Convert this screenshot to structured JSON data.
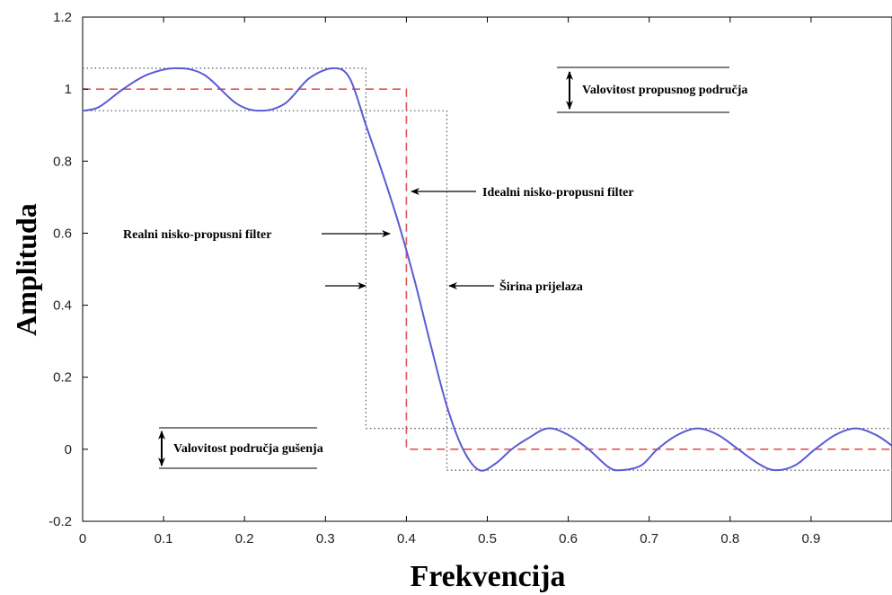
{
  "chart_data": {
    "type": "line",
    "xlabel": "Frekvencija",
    "ylabel": "Amplituda",
    "xlim": [
      0,
      1
    ],
    "ylim": [
      -0.2,
      1.2
    ],
    "xticks": [
      "0",
      "0.1",
      "0.2",
      "0.3",
      "0.4",
      "0.5",
      "0.6",
      "0.7",
      "0.8",
      "0.9"
    ],
    "yticks": [
      "-0.2",
      "0",
      "0.2",
      "0.4",
      "0.6",
      "0.8",
      "1",
      "1.2"
    ],
    "series": [
      {
        "color": "#5a5ad6",
        "style": "solid",
        "x": [
          0,
          0.02,
          0.05,
          0.08,
          0.115,
          0.15,
          0.19,
          0.22,
          0.25,
          0.28,
          0.31,
          0.33,
          0.35,
          0.37,
          0.39,
          0.41,
          0.43,
          0.45,
          0.47,
          0.49,
          0.51,
          0.53,
          0.55,
          0.575,
          0.6,
          0.625,
          0.65,
          0.665,
          0.69,
          0.71,
          0.735,
          0.76,
          0.785,
          0.81,
          0.835,
          0.855,
          0.88,
          0.905,
          0.93,
          0.955,
          0.98,
          1.0
        ],
        "y": [
          0.94,
          0.95,
          1.0,
          1.04,
          1.058,
          1.04,
          0.96,
          0.94,
          0.96,
          1.03,
          1.058,
          1.03,
          0.9,
          0.77,
          0.63,
          0.47,
          0.29,
          0.12,
          0.0,
          -0.058,
          -0.04,
          0.0,
          0.03,
          0.058,
          0.04,
          0.0,
          -0.05,
          -0.058,
          -0.045,
          0.0,
          0.04,
          0.058,
          0.04,
          0.0,
          -0.04,
          -0.058,
          -0.045,
          0.0,
          0.04,
          0.058,
          0.04,
          0.01
        ]
      },
      {
        "color": "#e05555",
        "style": "dashed",
        "x": [
          0,
          0.4,
          0.4,
          1.0
        ],
        "y": [
          1,
          1,
          0,
          0
        ]
      }
    ],
    "tolerance_lines": [
      {
        "x": [
          0,
          0.35
        ],
        "y": [
          1.058,
          1.058
        ]
      },
      {
        "x": [
          0,
          0.45
        ],
        "y": [
          0.94,
          0.94
        ]
      },
      {
        "x": [
          0.35,
          0.35
        ],
        "y": [
          1.058,
          0.058
        ]
      },
      {
        "x": [
          0.45,
          0.45
        ],
        "y": [
          0.94,
          -0.058
        ]
      },
      {
        "x": [
          0.35,
          1.0
        ],
        "y": [
          0.058,
          0.058
        ]
      },
      {
        "x": [
          0.45,
          1.0
        ],
        "y": [
          -0.058,
          -0.058
        ]
      }
    ],
    "annotations": {
      "passband_ripple": "Valovitost propusnog područja",
      "ideal_filter": "Idealni nisko-propusni filter",
      "real_filter": "Realni nisko-propusni filter",
      "transition_width": "Širina prijelaza",
      "stopband_ripple": "Valovitost područja gušenja"
    }
  }
}
